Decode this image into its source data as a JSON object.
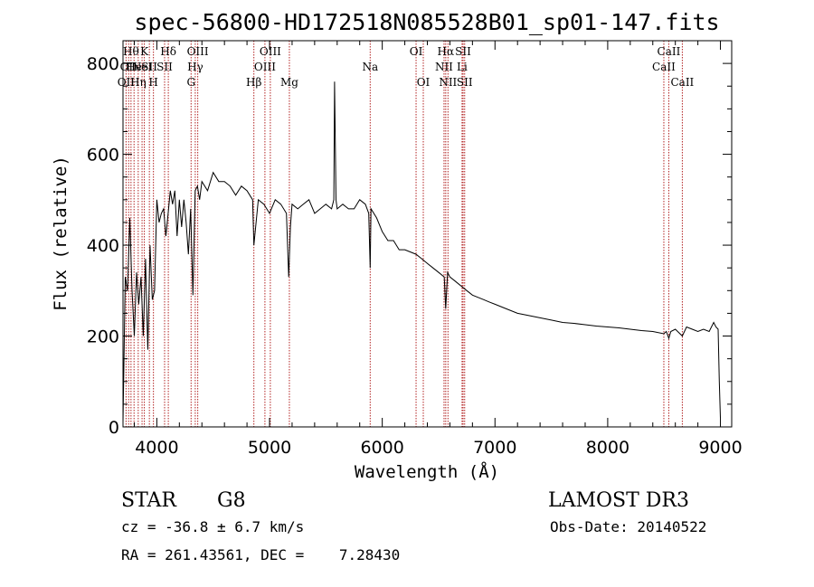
{
  "chart_data": {
    "type": "line",
    "title": "spec-56800-HD172518N085528B01_sp01-147.fits",
    "xlabel": "Wavelength (Å)",
    "ylabel": "Flux (relative)",
    "xlim": [
      3700,
      9100
    ],
    "ylim": [
      0,
      850
    ],
    "x_ticks": [
      4000,
      5000,
      6000,
      7000,
      8000,
      9000
    ],
    "y_ticks": [
      0,
      200,
      400,
      600,
      800
    ],
    "grid": false,
    "series": [
      {
        "name": "spectrum",
        "x": [
          3700,
          3720,
          3740,
          3760,
          3780,
          3800,
          3820,
          3840,
          3860,
          3880,
          3900,
          3920,
          3940,
          3960,
          3980,
          4000,
          4020,
          4040,
          4060,
          4080,
          4100,
          4120,
          4140,
          4160,
          4180,
          4200,
          4220,
          4240,
          4260,
          4280,
          4300,
          4320,
          4340,
          4360,
          4380,
          4400,
          4450,
          4500,
          4550,
          4600,
          4650,
          4700,
          4750,
          4800,
          4850,
          4861,
          4900,
          4950,
          5000,
          5050,
          5100,
          5150,
          5170,
          5185,
          5200,
          5250,
          5300,
          5350,
          5400,
          5450,
          5500,
          5550,
          5570,
          5577,
          5590,
          5600,
          5650,
          5700,
          5750,
          5800,
          5850,
          5880,
          5893,
          5900,
          5950,
          6000,
          6050,
          6100,
          6150,
          6200,
          6250,
          6300,
          6350,
          6400,
          6450,
          6500,
          6550,
          6563,
          6580,
          6600,
          6650,
          6700,
          6750,
          6800,
          6850,
          6900,
          6950,
          7000,
          7100,
          7200,
          7300,
          7400,
          7500,
          7600,
          7700,
          7800,
          7900,
          8000,
          8100,
          8200,
          8300,
          8400,
          8498,
          8520,
          8542,
          8560,
          8600,
          8662,
          8700,
          8750,
          8800,
          8850,
          8900,
          8940,
          8960,
          8980,
          8990,
          9000
        ],
        "values": [
          10,
          330,
          300,
          460,
          300,
          200,
          340,
          270,
          330,
          200,
          370,
          170,
          400,
          280,
          300,
          500,
          450,
          470,
          480,
          420,
          470,
          520,
          490,
          520,
          420,
          500,
          440,
          500,
          450,
          380,
          480,
          290,
          520,
          530,
          500,
          540,
          520,
          560,
          540,
          540,
          530,
          510,
          530,
          520,
          500,
          400,
          500,
          490,
          470,
          500,
          490,
          470,
          330,
          440,
          490,
          480,
          490,
          500,
          470,
          480,
          490,
          480,
          500,
          760,
          500,
          480,
          490,
          480,
          480,
          500,
          490,
          470,
          350,
          480,
          460,
          430,
          410,
          410,
          390,
          390,
          385,
          380,
          370,
          360,
          350,
          340,
          330,
          260,
          340,
          330,
          320,
          310,
          300,
          290,
          285,
          280,
          275,
          270,
          260,
          250,
          245,
          240,
          235,
          230,
          228,
          225,
          222,
          220,
          218,
          215,
          212,
          210,
          205,
          210,
          195,
          210,
          215,
          200,
          220,
          215,
          210,
          215,
          210,
          230,
          220,
          215,
          100,
          20
        ]
      }
    ],
    "line_markers": [
      {
        "wave": 3727,
        "row": 2,
        "label": "OII"
      },
      {
        "wave": 3750,
        "row": 1,
        "label": "OII"
      },
      {
        "wave": 3771,
        "row": 0,
        "label": "Hθ"
      },
      {
        "wave": 3798,
        "row": 1,
        "label": "He"
      },
      {
        "wave": 3835,
        "row": 2,
        "label": "Hη"
      },
      {
        "wave": 3869,
        "row": 1,
        "label": "NeI"
      },
      {
        "wave": 3889,
        "row": 0,
        "label": "K"
      },
      {
        "wave": 3934,
        "row": 1,
        "label": "SII"
      },
      {
        "wave": 3970,
        "row": 2,
        "label": "H"
      },
      {
        "wave": 4102,
        "row": 0,
        "label": "Hδ"
      },
      {
        "wave": 4069,
        "row": 1,
        "label": "SII"
      },
      {
        "wave": 4304,
        "row": 2,
        "label": "G"
      },
      {
        "wave": 4341,
        "row": 1,
        "label": "Hγ"
      },
      {
        "wave": 4363,
        "row": 0,
        "label": "OIII"
      },
      {
        "wave": 4861,
        "row": 2,
        "label": "Hβ"
      },
      {
        "wave": 4959,
        "row": 1,
        "label": "OIII"
      },
      {
        "wave": 5007,
        "row": 0,
        "label": "OIII"
      },
      {
        "wave": 5176,
        "row": 2,
        "label": "Mg"
      },
      {
        "wave": 5893,
        "row": 1,
        "label": "Na"
      },
      {
        "wave": 6300,
        "row": 0,
        "label": "OI"
      },
      {
        "wave": 6364,
        "row": 2,
        "label": "OI"
      },
      {
        "wave": 6548,
        "row": 1,
        "label": "NII"
      },
      {
        "wave": 6563,
        "row": 0,
        "label": "Hα"
      },
      {
        "wave": 6583,
        "row": 2,
        "label": "NII"
      },
      {
        "wave": 6708,
        "row": 1,
        "label": "Li"
      },
      {
        "wave": 6717,
        "row": 0,
        "label": "SII"
      },
      {
        "wave": 6731,
        "row": 2,
        "label": "SII"
      },
      {
        "wave": 8498,
        "row": 1,
        "label": "CaII"
      },
      {
        "wave": 8542,
        "row": 0,
        "label": "CaII"
      },
      {
        "wave": 8662,
        "row": 2,
        "label": "CaII"
      }
    ]
  },
  "info": {
    "object_class": "STAR",
    "subclass": "G8",
    "survey": "LAMOST DR3",
    "cz": "cz = -36.8 ± 6.7 km/s",
    "obs_date": "Obs-Date: 20140522",
    "radec": "RA = 261.43561, DEC =    7.28430"
  },
  "colors": {
    "spectrum": "#000000",
    "line_marker": "#b22222"
  }
}
